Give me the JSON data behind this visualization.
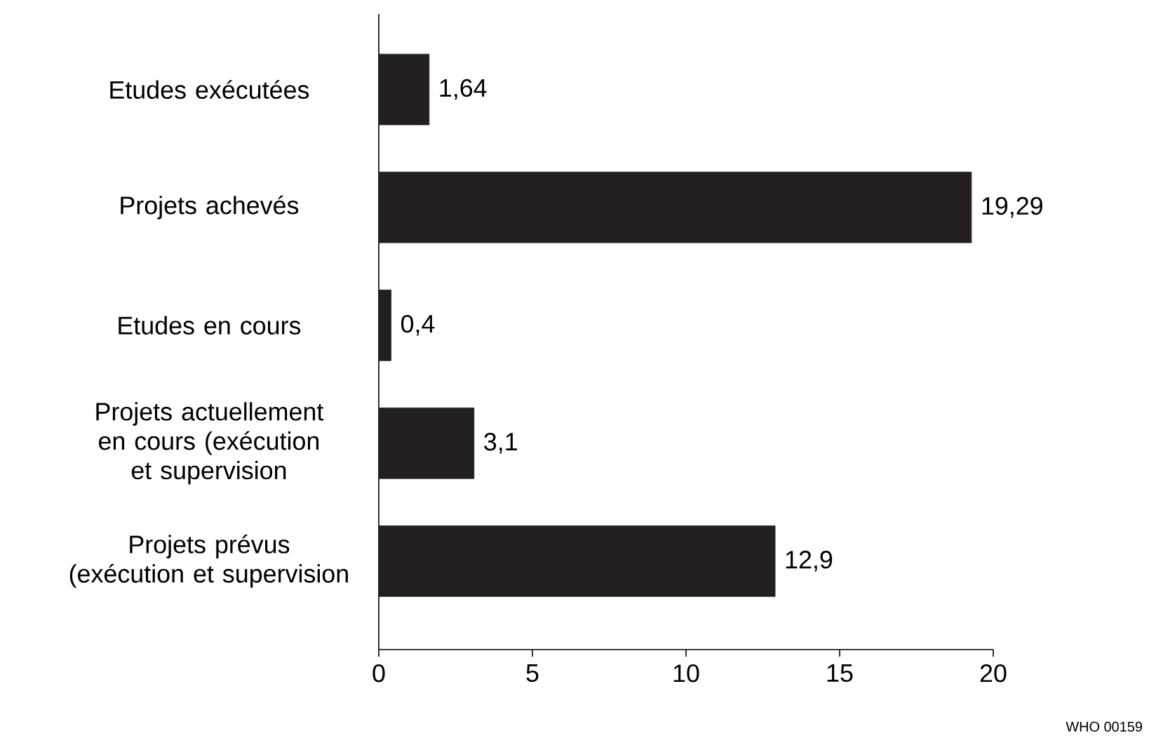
{
  "chart_data": {
    "type": "bar",
    "orientation": "horizontal",
    "categories": [
      "Etudes exécutées",
      "Projets achevés",
      "Etudes en cours",
      "Projets actuellement en cours (exécution et supervision",
      "Projets prévus (exécution et supervision"
    ],
    "values": [
      1.64,
      19.29,
      0.4,
      3.1,
      12.9
    ],
    "value_labels": [
      "1,64",
      "19,29",
      "0,4",
      "3,1",
      "12,9"
    ],
    "color": "#231f20",
    "xlim": [
      0,
      20
    ],
    "xticks": [
      0,
      5,
      10,
      15,
      20
    ],
    "grid": false,
    "annotations": [
      "WHO 00159"
    ]
  }
}
